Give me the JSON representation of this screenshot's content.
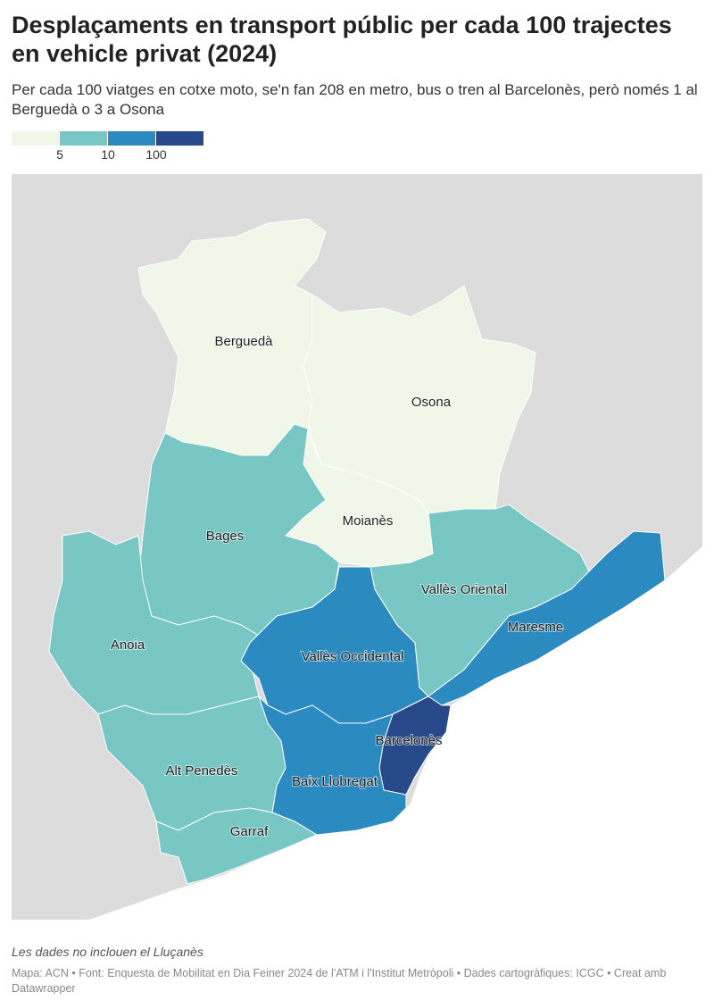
{
  "header": {
    "title": "Desplaçaments en transport públic per cada 100 trajectes en vehicle privat (2024)",
    "subtitle": "Per cada 100 viatges en cotxe moto, se'n fan 208 en metro, bus o tren al Barcelonès, però només 1 al Berguedà o 3 a Osona"
  },
  "legend": {
    "colors": [
      "#f0f7e9",
      "#79c7c5",
      "#2b8abf",
      "#27498a"
    ],
    "ticks": [
      5,
      10,
      100
    ]
  },
  "regions": [
    {
      "name": "Berguedà",
      "color": "#f0f7e9"
    },
    {
      "name": "Osona",
      "color": "#f0f7e9"
    },
    {
      "name": "Moianès",
      "color": "#f0f7e9"
    },
    {
      "name": "Bages",
      "color": "#79c7c5"
    },
    {
      "name": "Anoia",
      "color": "#79c7c5"
    },
    {
      "name": "Vallès Occidental",
      "color": "#2b8abf"
    },
    {
      "name": "Vallès Oriental",
      "color": "#79c7c5"
    },
    {
      "name": "Maresme",
      "color": "#2b8abf"
    },
    {
      "name": "Barcelonès",
      "color": "#27498a"
    },
    {
      "name": "Baix Llobregat",
      "color": "#2b8abf"
    },
    {
      "name": "Alt Penedès",
      "color": "#79c7c5"
    },
    {
      "name": "Garraf",
      "color": "#79c7c5"
    }
  ],
  "footer": {
    "note": "Les dades no inclouen el Lluçanès",
    "source": "Mapa: ACN • Font: Enquesta de Mobilitat en Dia Feiner 2024 de l'ATM i l'Institut Metròpoli • Dades cartogràfiques: ICGC • Creat amb Datawrapper"
  }
}
